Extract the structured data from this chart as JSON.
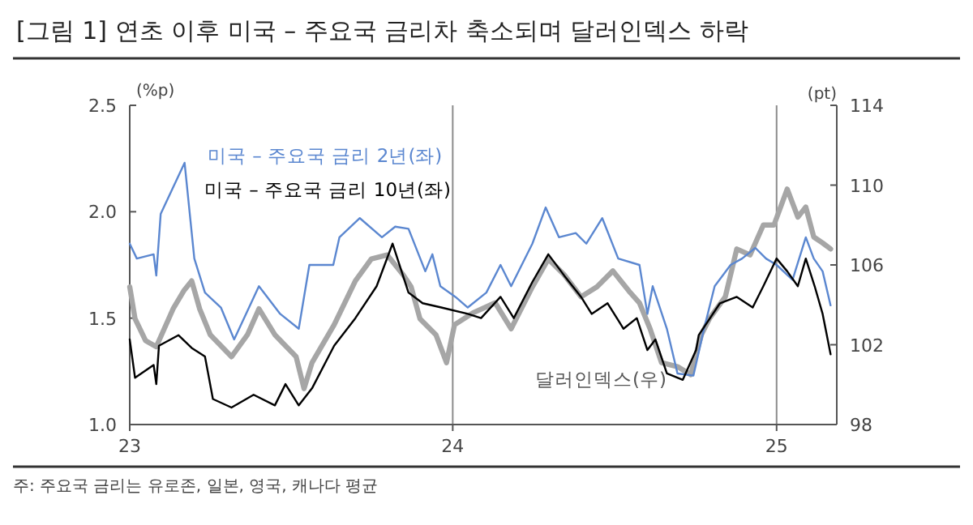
{
  "chart_data": {
    "type": "line",
    "title": "[그림 1] 연초 이후 미국 – 주요국 금리차 축소되며 달러인덱스 하락",
    "ylabel": "(%p)",
    "y2label": "(pt)",
    "annotations": [
      "주: 주요국 금리는 유로존, 일본, 영국, 캐나다 평균"
    ],
    "xlim": [
      "2023-01-01",
      "2025-03-10"
    ],
    "xticks": [
      {
        "value": "2023-01-01",
        "label": "23"
      },
      {
        "value": "2024-01-01",
        "label": "24"
      },
      {
        "value": "2025-01-01",
        "label": "25"
      }
    ],
    "ylim": [
      1.0,
      2.5
    ],
    "yticks": [
      {
        "value": 1,
        "label": "1.0"
      },
      1.5,
      {
        "value": 2,
        "label": "2.0"
      },
      2.5
    ],
    "y2lim": [
      98,
      114
    ],
    "y2ticks": [
      98,
      102,
      106,
      110,
      114
    ],
    "grid": false,
    "legend": false,
    "marker": "none",
    "line_style": "solid",
    "ref_lines": [
      {
        "axis": "x",
        "value": "2024-01-01",
        "color": "#8c8c8c"
      },
      {
        "axis": "x",
        "value": "2025-01-01",
        "color": "#8c8c8c"
      }
    ],
    "series": [
      {
        "name": "달러인덱스(우)",
        "color": "#a6a6a6",
        "axis": "y2",
        "x": [
          "2023-01-01",
          "2023-01-07",
          "2023-01-19",
          "2023-01-31",
          "2023-02-19",
          "2023-03-03",
          "2023-03-12",
          "2023-03-21",
          "2023-04-02",
          "2023-04-26",
          "2023-05-14",
          "2023-05-27",
          "2023-06-14",
          "2023-07-08",
          "2023-07-17",
          "2023-07-26",
          "2023-08-20",
          "2023-09-13",
          "2023-10-01",
          "2023-10-19",
          "2023-11-06",
          "2023-11-15",
          "2023-11-25",
          "2023-12-13",
          "2023-12-25",
          "2024-01-03",
          "2024-01-24",
          "2024-02-18",
          "2024-03-07",
          "2024-03-31",
          "2024-04-18",
          "2024-05-06",
          "2024-05-25",
          "2024-06-12",
          "2024-06-30",
          "2024-07-18",
          "2024-07-30",
          "2024-08-11",
          "2024-08-24",
          "2024-09-11",
          "2024-09-26",
          "2024-10-08",
          "2024-10-17",
          "2024-11-04",
          "2024-11-17",
          "2024-12-02",
          "2024-12-17",
          "2024-12-29",
          "2025-01-13",
          "2025-01-25",
          "2025-02-03",
          "2025-02-12",
          "2025-02-22",
          "2025-03-03"
        ],
        "values": [
          104.9,
          103.3,
          102.2,
          101.9,
          103.8,
          104.7,
          105.2,
          103.8,
          102.5,
          101.4,
          102.5,
          103.8,
          102.5,
          101.4,
          99.8,
          101.1,
          103.0,
          105.2,
          106.3,
          106.5,
          105.5,
          104.9,
          103.3,
          102.5,
          101.1,
          103.0,
          103.6,
          104.1,
          102.8,
          104.9,
          106.3,
          105.5,
          104.4,
          104.9,
          105.7,
          104.7,
          104.1,
          102.8,
          101.1,
          100.9,
          100.5,
          102.5,
          103.3,
          104.4,
          106.8,
          106.5,
          108.0,
          108.0,
          109.8,
          108.4,
          108.9,
          107.4,
          107.1,
          106.8
        ]
      },
      {
        "name": "미국 – 주요국 금리 2년(좌)",
        "color": "#5b87d0",
        "x": [
          "2023-01-01",
          "2023-01-09",
          "2023-01-28",
          "2023-01-31",
          "2023-02-05",
          "2023-03-04",
          "2023-03-15",
          "2023-03-27",
          "2023-04-14",
          "2023-04-29",
          "2023-05-27",
          "2023-06-20",
          "2023-07-11",
          "2023-07-23",
          "2023-08-19",
          "2023-08-26",
          "2023-09-18",
          "2023-10-13",
          "2023-10-28",
          "2023-11-12",
          "2023-12-01",
          "2023-12-09",
          "2023-12-18",
          "2024-01-04",
          "2024-01-18",
          "2024-02-08",
          "2024-02-24",
          "2024-03-07",
          "2024-03-31",
          "2024-04-15",
          "2024-04-30",
          "2024-05-19",
          "2024-05-31",
          "2024-06-18",
          "2024-07-06",
          "2024-07-30",
          "2024-08-08",
          "2024-08-14",
          "2024-08-30",
          "2024-09-11",
          "2024-09-29",
          "2024-10-11",
          "2024-10-23",
          "2024-11-10",
          "2024-11-23",
          "2024-12-08",
          "2024-12-20",
          "2025-01-01",
          "2025-01-19",
          "2025-02-03",
          "2025-02-12",
          "2025-02-22",
          "2025-03-03"
        ],
        "values": [
          1.85,
          1.78,
          1.8,
          1.7,
          1.99,
          2.23,
          1.78,
          1.62,
          1.55,
          1.4,
          1.65,
          1.52,
          1.45,
          1.75,
          1.75,
          1.88,
          1.97,
          1.88,
          1.93,
          1.92,
          1.72,
          1.8,
          1.65,
          1.6,
          1.55,
          1.62,
          1.75,
          1.65,
          1.85,
          2.02,
          1.88,
          1.9,
          1.85,
          1.97,
          1.78,
          1.75,
          1.52,
          1.65,
          1.45,
          1.24,
          1.23,
          1.45,
          1.65,
          1.75,
          1.78,
          1.83,
          1.78,
          1.75,
          1.68,
          1.88,
          1.78,
          1.72,
          1.56
        ]
      },
      {
        "name": "미국 – 주요국 금리 10년(좌)",
        "color": "#000000",
        "x": [
          "2023-01-01",
          "2023-01-07",
          "2023-01-28",
          "2023-01-31",
          "2023-02-03",
          "2023-02-25",
          "2023-03-12",
          "2023-03-27",
          "2023-04-05",
          "2023-04-26",
          "2023-05-21",
          "2023-06-14",
          "2023-06-26",
          "2023-07-11",
          "2023-07-26",
          "2023-08-20",
          "2023-09-13",
          "2023-10-07",
          "2023-10-25",
          "2023-11-12",
          "2023-11-28",
          "2023-12-19",
          "2024-01-18",
          "2024-02-02",
          "2024-02-24",
          "2024-03-10",
          "2024-03-31",
          "2024-04-18",
          "2024-05-06",
          "2024-05-25",
          "2024-06-06",
          "2024-06-24",
          "2024-07-12",
          "2024-07-27",
          "2024-08-08",
          "2024-08-17",
          "2024-08-30",
          "2024-09-17",
          "2024-10-02",
          "2024-10-05",
          "2024-10-29",
          "2024-11-17",
          "2024-12-05",
          "2024-12-17",
          "2025-01-01",
          "2025-01-13",
          "2025-01-25",
          "2025-02-03",
          "2025-02-13",
          "2025-02-22",
          "2025-03-03"
        ],
        "values": [
          1.4,
          1.22,
          1.28,
          1.19,
          1.37,
          1.42,
          1.36,
          1.32,
          1.12,
          1.08,
          1.14,
          1.09,
          1.19,
          1.09,
          1.17,
          1.37,
          1.5,
          1.65,
          1.85,
          1.62,
          1.57,
          1.55,
          1.52,
          1.5,
          1.6,
          1.5,
          1.67,
          1.8,
          1.7,
          1.6,
          1.52,
          1.57,
          1.45,
          1.5,
          1.35,
          1.4,
          1.24,
          1.21,
          1.35,
          1.42,
          1.57,
          1.6,
          1.55,
          1.65,
          1.78,
          1.72,
          1.65,
          1.78,
          1.65,
          1.52,
          1.33
        ]
      }
    ]
  }
}
